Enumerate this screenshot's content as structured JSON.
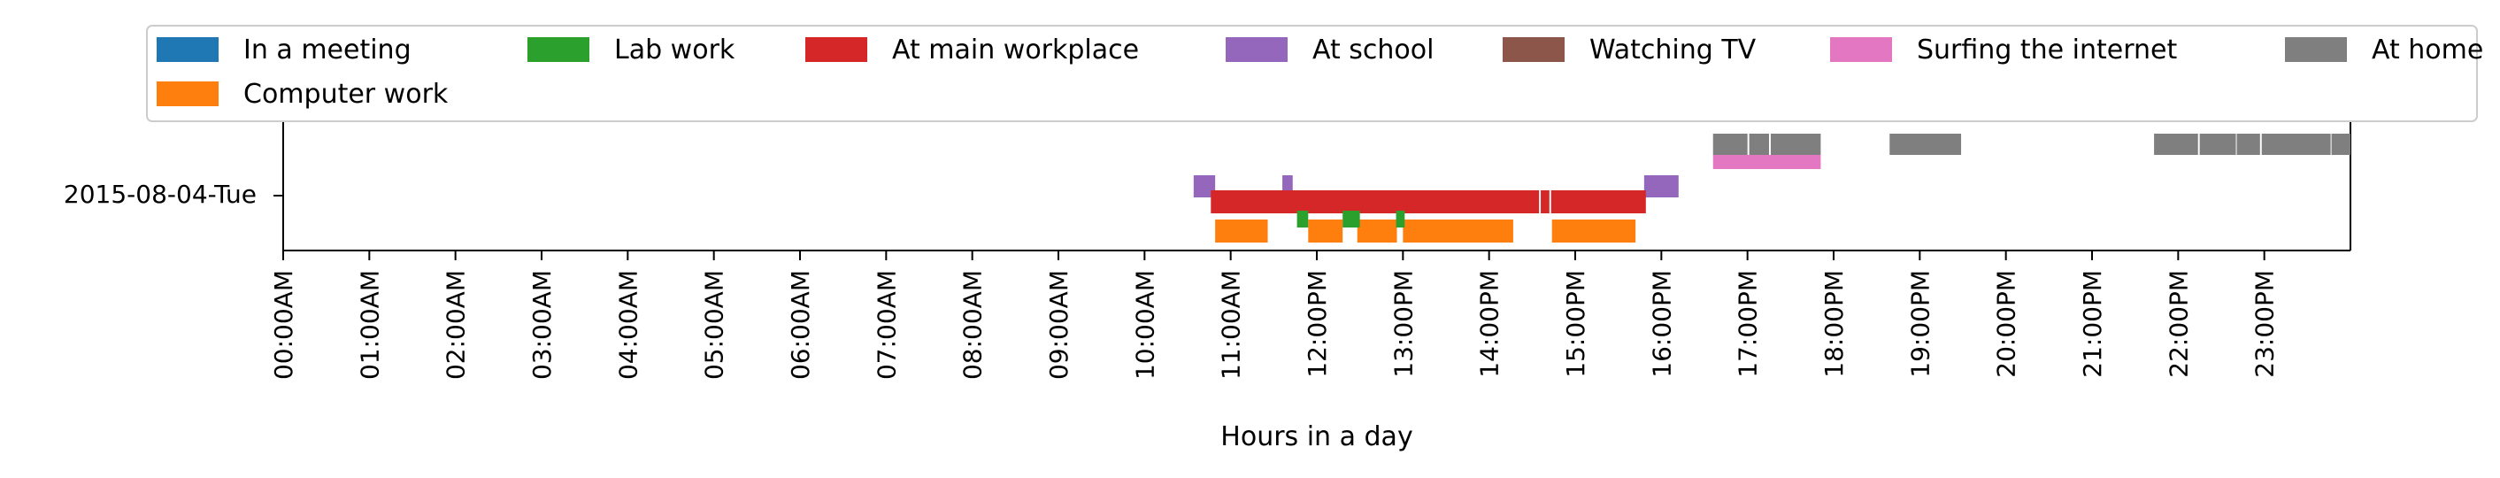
{
  "chart_data": {
    "type": "timeline",
    "xlabel": "Hours in a day",
    "ylabel": "",
    "xlim": [
      0,
      24
    ],
    "y_categories": [
      "2015-08-04-Tue"
    ],
    "x_ticks": [
      {
        "value": 0,
        "label": "00:00AM"
      },
      {
        "value": 1,
        "label": "01:00AM"
      },
      {
        "value": 2,
        "label": "02:00AM"
      },
      {
        "value": 3,
        "label": "03:00AM"
      },
      {
        "value": 4,
        "label": "04:00AM"
      },
      {
        "value": 5,
        "label": "05:00AM"
      },
      {
        "value": 6,
        "label": "06:00AM"
      },
      {
        "value": 7,
        "label": "07:00AM"
      },
      {
        "value": 8,
        "label": "08:00AM"
      },
      {
        "value": 9,
        "label": "09:00AM"
      },
      {
        "value": 10,
        "label": "10:00AM"
      },
      {
        "value": 11,
        "label": "11:00AM"
      },
      {
        "value": 12,
        "label": "12:00PM"
      },
      {
        "value": 13,
        "label": "13:00PM"
      },
      {
        "value": 14,
        "label": "14:00PM"
      },
      {
        "value": 15,
        "label": "15:00PM"
      },
      {
        "value": 16,
        "label": "16:00PM"
      },
      {
        "value": 17,
        "label": "17:00PM"
      },
      {
        "value": 18,
        "label": "18:00PM"
      },
      {
        "value": 19,
        "label": "19:00PM"
      },
      {
        "value": 20,
        "label": "20:00PM"
      },
      {
        "value": 21,
        "label": "21:00PM"
      },
      {
        "value": 22,
        "label": "22:00PM"
      },
      {
        "value": 23,
        "label": "23:00PM"
      }
    ],
    "legend_position": "top",
    "series": [
      {
        "name": "In a meeting",
        "color": "#1f77b4",
        "intervals": []
      },
      {
        "name": "Computer work",
        "color": "#ff7f0e",
        "intervals": [
          [
            10.82,
            11.43
          ],
          [
            11.9,
            12.3
          ],
          [
            12.47,
            12.93
          ],
          [
            13.0,
            14.28
          ],
          [
            14.73,
            15.7
          ]
        ]
      },
      {
        "name": "Lab work",
        "color": "#2ca02c",
        "intervals": [
          [
            11.77,
            11.9
          ],
          [
            12.3,
            12.5
          ],
          [
            12.92,
            13.02
          ]
        ]
      },
      {
        "name": "At main workplace",
        "color": "#d62728",
        "intervals": [
          [
            10.77,
            14.58
          ],
          [
            14.6,
            14.7
          ],
          [
            14.72,
            15.82
          ]
        ]
      },
      {
        "name": "At school",
        "color": "#9467bd",
        "intervals": [
          [
            10.57,
            10.82
          ],
          [
            11.6,
            11.72
          ],
          [
            15.8,
            16.2
          ]
        ]
      },
      {
        "name": "Watching TV",
        "color": "#8c564b",
        "intervals": []
      },
      {
        "name": "Surfing the internet",
        "color": "#e377c2",
        "intervals": [
          [
            16.6,
            17.85
          ]
        ]
      },
      {
        "name": "At home",
        "color": "#7f7f7f",
        "intervals": [
          [
            16.6,
            17.0
          ],
          [
            17.02,
            17.25
          ],
          [
            17.27,
            17.85
          ],
          [
            18.65,
            19.48
          ],
          [
            21.72,
            22.23
          ],
          [
            22.25,
            22.67
          ],
          [
            22.68,
            22.95
          ],
          [
            22.97,
            23.77
          ],
          [
            23.78,
            24.0
          ]
        ]
      }
    ]
  }
}
